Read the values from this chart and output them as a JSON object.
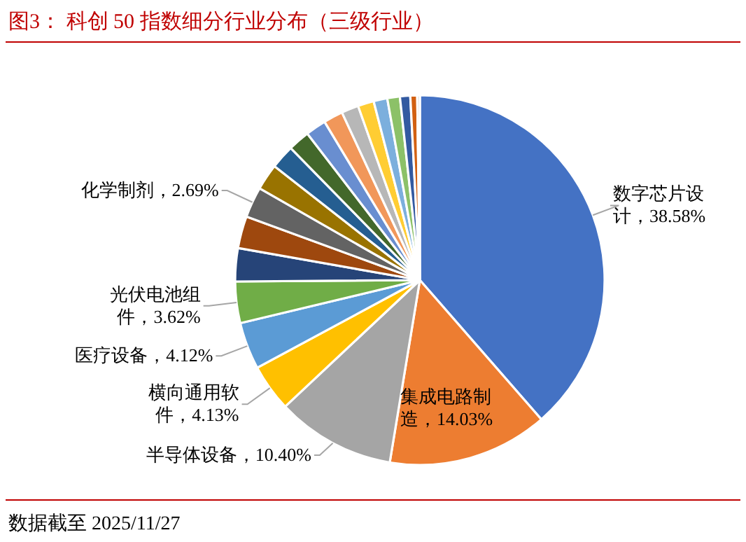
{
  "chart_data": {
    "type": "pie",
    "title": "图3：  科创 50 指数细分行业分布（三级行业）",
    "categories": [
      "数字芯片设计",
      "集成电路制造",
      "半导体设备",
      "横向通用软件",
      "医疗设备",
      "光伏电池组件",
      null,
      null,
      "化学制剂",
      null,
      null,
      null,
      null,
      null,
      null,
      null,
      null,
      null,
      null,
      null,
      null
    ],
    "values": [
      38.58,
      14.03,
      10.4,
      4.13,
      4.12,
      3.62,
      2.9,
      2.8,
      2.69,
      2.3,
      2.1,
      1.9,
      1.8,
      1.7,
      1.5,
      1.4,
      1.2,
      1.1,
      0.9,
      0.6,
      0.23
    ],
    "value_labels": [
      "38.58%",
      "14.03%",
      "10.40%",
      "4.13%",
      "4.12%",
      "3.62%",
      null,
      null,
      "2.69%",
      null,
      null,
      null,
      null,
      null,
      null,
      null,
      null,
      null,
      null,
      null,
      null
    ],
    "colors": [
      "#4472c4",
      "#ed7d31",
      "#a5a5a5",
      "#ffc000",
      "#5b9bd5",
      "#70ad47",
      "#264478",
      "#9e480e",
      "#636363",
      "#997300",
      "#255e91",
      "#43682b",
      "#698ed0",
      "#f1975a",
      "#b7b7b7",
      "#ffcd33",
      "#7cafdd",
      "#8cc168",
      "#335aa1",
      "#d26012",
      "#c0c0c0"
    ],
    "annotations": [
      "数据截至 2025/11/27"
    ]
  }
}
